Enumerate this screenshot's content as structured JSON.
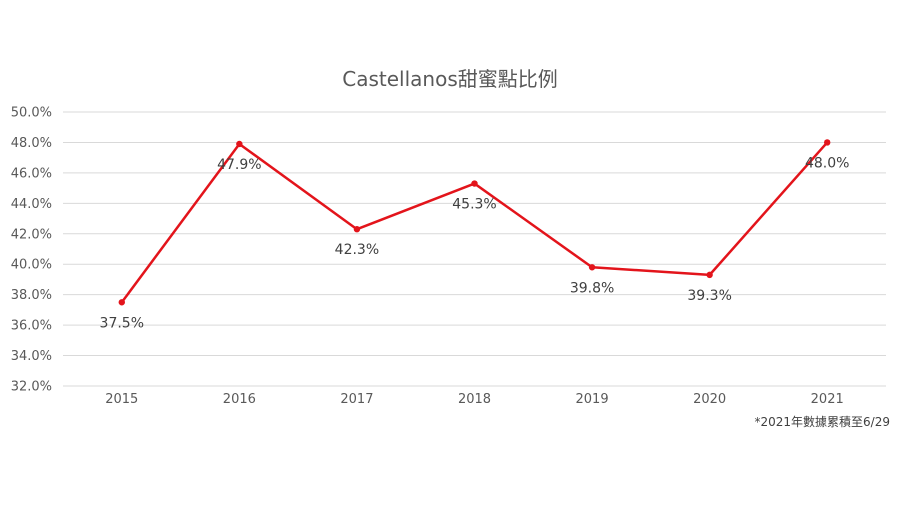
{
  "chart_data": {
    "type": "line",
    "title": "Castellanos甜蜜點比例",
    "categories": [
      "2015",
      "2016",
      "2017",
      "2018",
      "2019",
      "2020",
      "2021"
    ],
    "series": [
      {
        "values": [
          37.5,
          47.9,
          42.3,
          45.3,
          39.8,
          39.3,
          48.0
        ],
        "data_labels": [
          "37.5%",
          "47.9%",
          "42.3%",
          "45.3%",
          "39.8%",
          "39.3%",
          "48.0%"
        ],
        "color": "#e3141b"
      }
    ],
    "ylim": [
      32,
      50
    ],
    "yticks": [
      "32.0%",
      "34.0%",
      "36.0%",
      "38.0%",
      "40.0%",
      "42.0%",
      "44.0%",
      "46.0%",
      "48.0%",
      "50.0%"
    ],
    "grid": true,
    "legend": "none",
    "footnote": "*2021年數據累積至6/29"
  }
}
